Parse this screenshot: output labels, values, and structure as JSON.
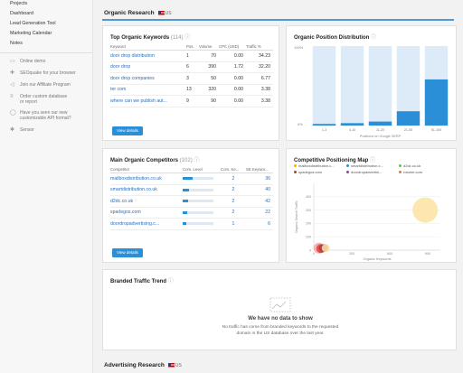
{
  "sidebar": {
    "items": [
      "Projects",
      "Dashboard",
      "Lead Generation Tool",
      "Marketing Calendar",
      "Notes"
    ],
    "links": [
      {
        "icon": "monitor-icon",
        "label": "Online demo"
      },
      {
        "icon": "puzzle-icon",
        "label": "SEOquake for your browser"
      },
      {
        "icon": "megaphone-icon",
        "label": "Join our Affiliate Program"
      },
      {
        "icon": "database-icon",
        "label": "Order custom database or report"
      },
      {
        "icon": "chat-icon",
        "label": "Have you seen our new customizable API format?"
      },
      {
        "icon": "sensor-icon",
        "label": "Sensor"
      }
    ]
  },
  "organic_research": {
    "title": "Organic Research",
    "country": "US"
  },
  "keywords": {
    "title": "Top Organic Keywords",
    "count": "(114)",
    "headers": [
      "Keyword",
      "Pos.",
      "Volume",
      "CPC (USD)",
      "Traffic %"
    ],
    "rows": [
      {
        "keyword": "door drop distribution",
        "pos": "1",
        "volume": "70",
        "cpc": "0.00",
        "traffic": "34.23"
      },
      {
        "keyword": "door drop",
        "pos": "6",
        "volume": "390",
        "cpc": "1.72",
        "traffic": "32.20"
      },
      {
        "keyword": "door drop companies",
        "pos": "3",
        "volume": "50",
        "cpc": "0.00",
        "traffic": "6.77"
      },
      {
        "keyword": "ter com",
        "pos": "13",
        "volume": "320",
        "cpc": "0.00",
        "traffic": "3.38"
      },
      {
        "keyword": "where can we publish aut...",
        "pos": "9",
        "volume": "90",
        "cpc": "0.00",
        "traffic": "3.38"
      }
    ],
    "button": "View details"
  },
  "position_chart": {
    "title": "Organic Position Distribution",
    "chart_data": {
      "type": "bar",
      "categories": [
        "1-3",
        "4-10",
        "11-20",
        "21-50",
        "51-100"
      ],
      "values": [
        2,
        3,
        5,
        18,
        58
      ],
      "xlabel": "Positions on Google SERP",
      "ylabel": "",
      "yticks": [
        "100%",
        "0%"
      ],
      "ylim": [
        0,
        100
      ]
    }
  },
  "competitors": {
    "title": "Main Organic Competitors",
    "count": "(102)",
    "headers": [
      "Competitor",
      "Com. Level",
      "Com. Ke...",
      "SE Keywor..."
    ],
    "rows": [
      {
        "name": "mailboxdistribution.co.uk",
        "level": 0.32,
        "com": "2",
        "se": "36"
      },
      {
        "name": "smartdistribution.co.uk",
        "level": 0.22,
        "com": "2",
        "se": "40"
      },
      {
        "name": "d2dc.co.uk",
        "level": 0.18,
        "com": "2",
        "se": "42"
      },
      {
        "name": "sparlegos.com",
        "level": 0.15,
        "com": "2",
        "se": "22"
      },
      {
        "name": "doordropadvertising.c...",
        "level": 0.11,
        "com": "1",
        "se": "6"
      }
    ],
    "button": "View details"
  },
  "positioning_map": {
    "title": "Competitive Positioning Map",
    "legend": [
      {
        "label": "mailboxdistribution.c...",
        "color": "#f2b705"
      },
      {
        "label": "smartdistribution.c...",
        "color": "#2a8fd6"
      },
      {
        "label": "d2dc.co.uk",
        "color": "#6cbf4a"
      },
      {
        "label": "sparlegos.com",
        "color": "#c0392b"
      },
      {
        "label": "doordropadvertisi...",
        "color": "#8e44ad"
      },
      {
        "label": "roturier.com",
        "color": "#e67e22"
      }
    ],
    "chart_data": {
      "type": "scatter",
      "xlabel": "Organic Keywords",
      "ylabel": "Organic Search Traffic",
      "xlim": [
        0,
        1000
      ],
      "ylim": [
        0,
        500
      ],
      "xticks": [
        0,
        300,
        600,
        900
      ],
      "yticks": [
        0,
        100,
        200,
        300,
        400
      ],
      "points": [
        {
          "x": 880,
          "y": 300,
          "size": 14,
          "color": "#fde3a0"
        },
        {
          "x": 40,
          "y": 15,
          "size": 6,
          "color": "#f5a9a9"
        },
        {
          "x": 55,
          "y": 12,
          "size": 5,
          "color": "#d44"
        },
        {
          "x": 70,
          "y": 14,
          "size": 4.5,
          "color": "#c0392b"
        },
        {
          "x": 85,
          "y": 18,
          "size": 4,
          "color": "#8e44ad"
        },
        {
          "x": 95,
          "y": 16,
          "size": 4.5,
          "color": "#fde3a0"
        }
      ]
    }
  },
  "branded": {
    "title": "Branded Traffic Trend",
    "empty_title": "We have no data to show",
    "empty_text_1": "No traffic has come from branded keywords to the requested",
    "empty_text_2": "domain in the US database over the last year."
  },
  "advertising": {
    "title": "Advertising Research",
    "country": "US"
  }
}
